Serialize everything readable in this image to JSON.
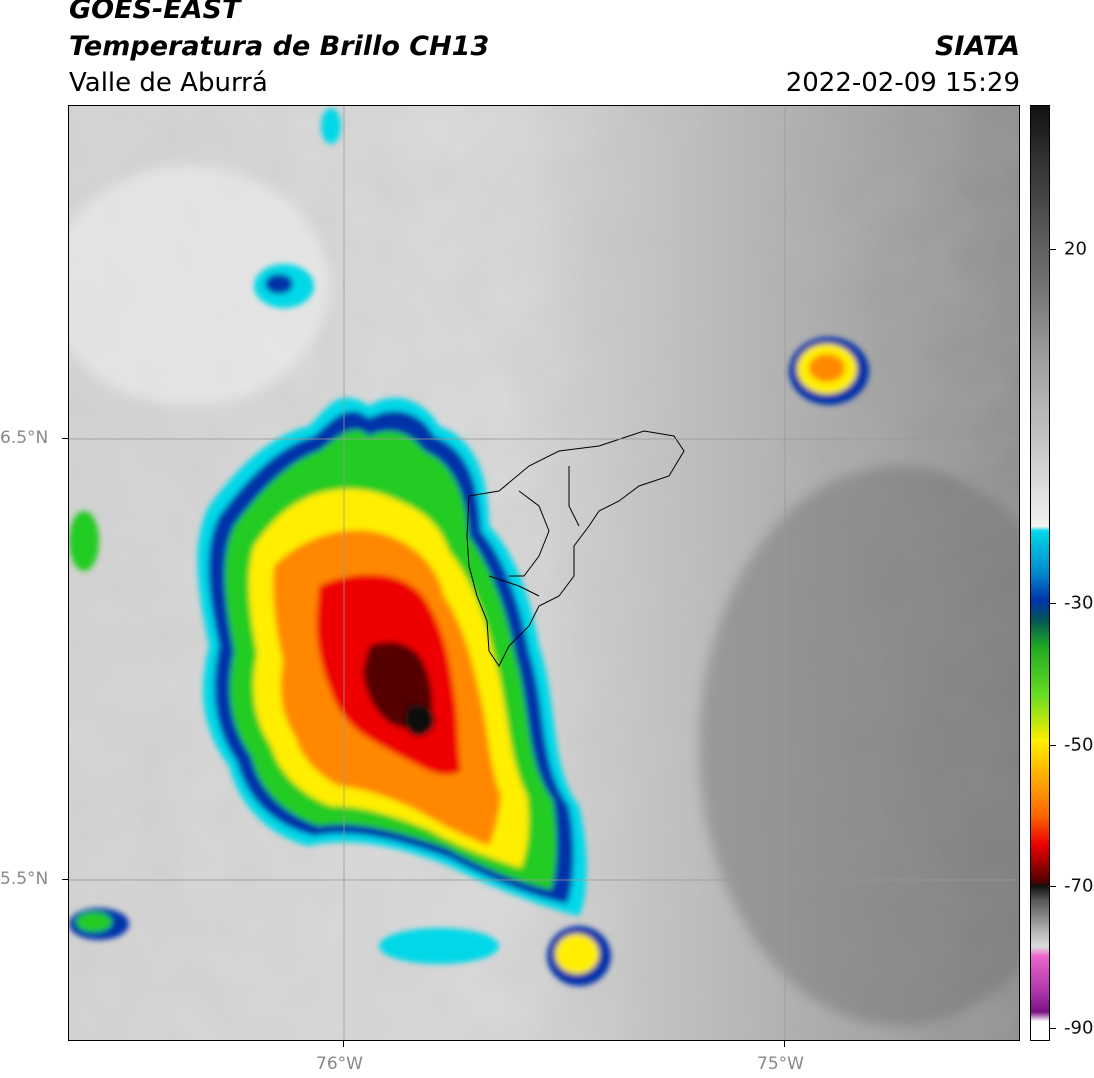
{
  "header": {
    "satellite": "GOES-EAST",
    "product": "Temperatura de Brillo CH13",
    "region": "Valle de Aburrá",
    "agency": "SIATA",
    "timestamp": "2022-02-09 15:29"
  },
  "map": {
    "lon_labels": [
      "76°W",
      "75°W"
    ],
    "lat_labels": [
      "6.5°N",
      "5.5°N"
    ]
  },
  "colorbar": {
    "labels": [
      "20",
      "-30",
      "-50",
      "-70",
      "-90"
    ],
    "colors": {
      "warm_dark": "#111111",
      "gray": "#9a9a9a",
      "light": "#f2f2f2",
      "cyan": "#00d8e8",
      "blue": "#0033aa",
      "green": "#22cc22",
      "yellow": "#ffee00",
      "orange": "#ff8800",
      "red": "#ee0000",
      "dark_red": "#550000",
      "magenta": "#cc44cc"
    }
  }
}
